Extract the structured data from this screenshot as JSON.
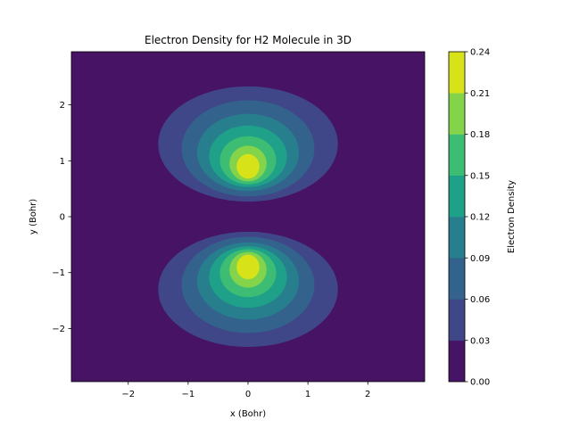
{
  "chart_data": {
    "type": "contourf",
    "title": "Electron Density for H2 Molecule in 3D",
    "xlabel": "x (Bohr)",
    "ylabel": "y (Bohr)",
    "xlim": [
      -2.95,
      2.95
    ],
    "ylim": [
      -2.95,
      2.95
    ],
    "xticks": [
      -2,
      -1,
      0,
      1,
      2
    ],
    "yticks": [
      -2,
      -1,
      0,
      1,
      2
    ],
    "xtick_labels": [
      "−2",
      "−1",
      "0",
      "1",
      "2"
    ],
    "ytick_labels": [
      "−2",
      "−1",
      "0",
      "1",
      "2"
    ],
    "grid": false,
    "colorbar": {
      "label": "Electron Density",
      "levels": [
        0.0,
        0.03,
        0.06,
        0.09,
        0.12,
        0.15,
        0.18,
        0.21,
        0.24
      ],
      "tick_labels": [
        "0.00",
        "0.03",
        "0.06",
        "0.09",
        "0.12",
        "0.15",
        "0.18",
        "0.21",
        "0.24"
      ],
      "colors": [
        "#471365",
        "#3f4788",
        "#33638d",
        "#277f8e",
        "#1fa088",
        "#3dbc74",
        "#84d44b",
        "#d8e219"
      ]
    },
    "lobes": [
      {
        "name": "upper",
        "contours": [
          {
            "level": 0.03,
            "cx": 0.0,
            "cy": 1.3,
            "rx": 1.5,
            "ry": 1.03
          },
          {
            "level": 0.06,
            "cx": 0.0,
            "cy": 1.22,
            "rx": 1.11,
            "ry": 0.86
          },
          {
            "level": 0.09,
            "cx": 0.0,
            "cy": 1.15,
            "rx": 0.85,
            "ry": 0.69
          },
          {
            "level": 0.12,
            "cx": 0.0,
            "cy": 1.08,
            "rx": 0.65,
            "ry": 0.55
          },
          {
            "level": 0.15,
            "cx": 0.0,
            "cy": 1.01,
            "rx": 0.47,
            "ry": 0.43
          },
          {
            "level": 0.18,
            "cx": 0.0,
            "cy": 0.95,
            "rx": 0.31,
            "ry": 0.32
          },
          {
            "level": 0.21,
            "cx": 0.0,
            "cy": 0.9,
            "rx": 0.19,
            "ry": 0.22
          }
        ]
      },
      {
        "name": "lower",
        "contours": [
          {
            "level": 0.03,
            "cx": 0.0,
            "cy": -1.3,
            "rx": 1.5,
            "ry": 1.03
          },
          {
            "level": 0.06,
            "cx": 0.0,
            "cy": -1.22,
            "rx": 1.11,
            "ry": 0.86
          },
          {
            "level": 0.09,
            "cx": 0.0,
            "cy": -1.15,
            "rx": 0.85,
            "ry": 0.69
          },
          {
            "level": 0.12,
            "cx": 0.0,
            "cy": -1.08,
            "rx": 0.65,
            "ry": 0.55
          },
          {
            "level": 0.15,
            "cx": 0.0,
            "cy": -1.01,
            "rx": 0.47,
            "ry": 0.43
          },
          {
            "level": 0.18,
            "cx": 0.0,
            "cy": -0.95,
            "rx": 0.31,
            "ry": 0.32
          },
          {
            "level": 0.21,
            "cx": 0.0,
            "cy": -0.9,
            "rx": 0.19,
            "ry": 0.22
          }
        ]
      }
    ]
  }
}
